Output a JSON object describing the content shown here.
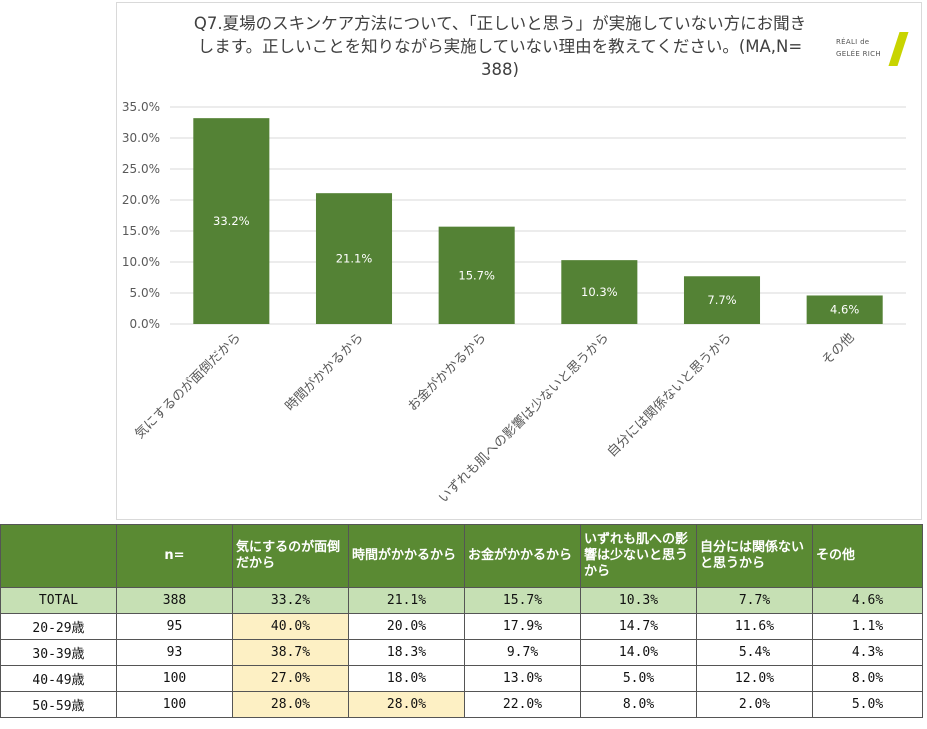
{
  "chart_data": {
    "type": "bar",
    "title": "Q7.夏場のスキンケア方法について、「正しいと思う」が実施していない方にお聞きします。正しいことを知りながら実施していない理由を教えてください。(MA,N=388)",
    "title_lines": [
      "Q7.夏場のスキンケア方法について、「正しいと思う」が実施していない方にお聞き",
      "します。正しいことを知りながら実施していない理由を教えてください。(MA,N=",
      "388)"
    ],
    "categories": [
      "気にするのが面倒だから",
      "時間がかかるから",
      "お金がかかるから",
      "いずれも肌への影響は少ないと思うから",
      "自分には関係ないと思うから",
      "その他"
    ],
    "values": [
      33.2,
      21.1,
      15.7,
      10.3,
      7.7,
      4.6
    ],
    "data_labels": [
      "33.2%",
      "21.1%",
      "15.7%",
      "10.3%",
      "7.7%",
      "4.6%"
    ],
    "yticks": [
      "0.0%",
      "5.0%",
      "10.0%",
      "15.0%",
      "20.0%",
      "25.0%",
      "30.0%",
      "35.0%"
    ],
    "ylim": [
      0,
      35
    ],
    "xlabel": "",
    "ylabel": "",
    "grid": true,
    "bar_color": "#548235"
  },
  "logo": {
    "line1": "RÉALI de",
    "line2": "GELÉE RICH"
  },
  "table": {
    "headers": [
      "",
      "n=",
      "気にするのが面倒だから",
      "時間がかかるから",
      "お金がかかるから",
      "いずれも肌への影響は少ないと思うから",
      "自分には関係ないと思うから",
      "その他"
    ],
    "rows": [
      {
        "label": "TOTAL",
        "n": "388",
        "values": [
          "33.2%",
          "21.1%",
          "15.7%",
          "10.3%",
          "7.7%",
          "4.6%"
        ],
        "highlight": []
      },
      {
        "label": "20-29歳",
        "n": "95",
        "values": [
          "40.0%",
          "20.0%",
          "17.9%",
          "14.7%",
          "11.6%",
          "1.1%"
        ],
        "highlight": [
          0
        ]
      },
      {
        "label": "30-39歳",
        "n": "93",
        "values": [
          "38.7%",
          "18.3%",
          "9.7%",
          "14.0%",
          "5.4%",
          "4.3%"
        ],
        "highlight": [
          0
        ]
      },
      {
        "label": "40-49歳",
        "n": "100",
        "values": [
          "27.0%",
          "18.0%",
          "13.0%",
          "5.0%",
          "12.0%",
          "8.0%"
        ],
        "highlight": [
          0
        ]
      },
      {
        "label": "50-59歳",
        "n": "100",
        "values": [
          "28.0%",
          "28.0%",
          "22.0%",
          "8.0%",
          "2.0%",
          "5.0%"
        ],
        "highlight": [
          0,
          1
        ]
      }
    ]
  },
  "colors": {
    "header_bg": "#5a8a33",
    "total_bg": "#c6e0b4",
    "highlight_bg": "#fdf0c4"
  }
}
